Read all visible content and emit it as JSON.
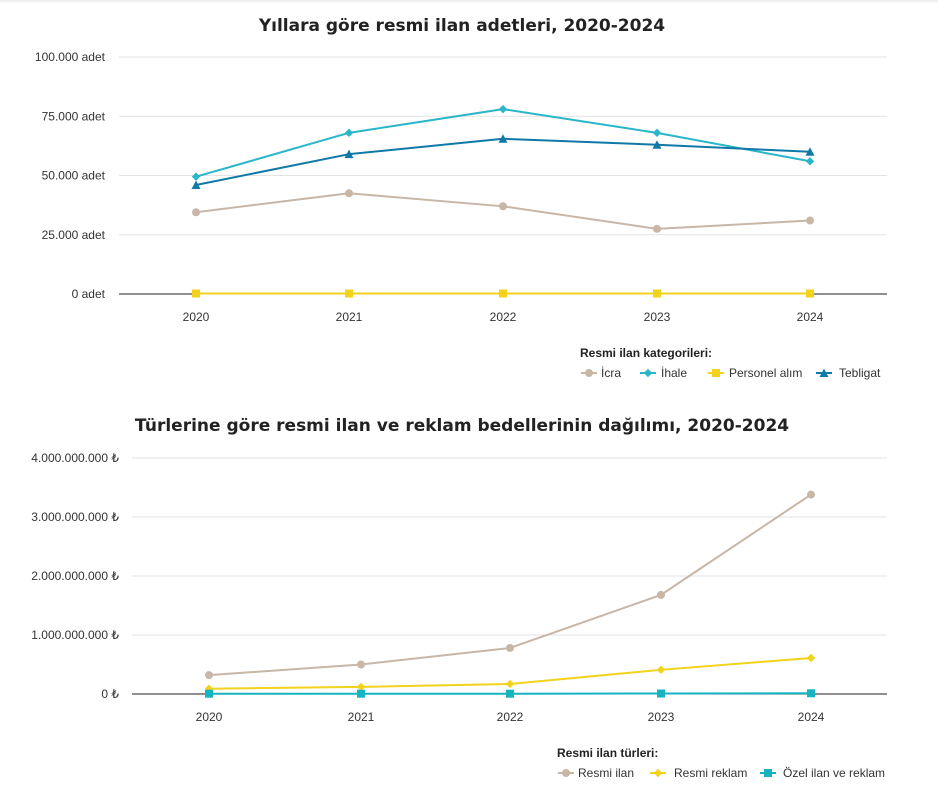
{
  "chart_data": [
    {
      "type": "line",
      "title": "Yıllara göre resmi ilan adetleri, 2020-2024",
      "x": [
        "2020",
        "2021",
        "2022",
        "2023",
        "2024"
      ],
      "y_ticks": [
        "0 adet",
        "25.000 adet",
        "50.000 adet",
        "75.000 adet",
        "100.000 adet"
      ],
      "ylim": [
        0,
        100000
      ],
      "grid": true,
      "legend_title": "Resmi ilan kategorileri:",
      "legend_position": "bottom-right",
      "series": [
        {
          "name": "İcra",
          "values": [
            34500,
            42500,
            37000,
            27500,
            31000
          ],
          "color": "#c8b6a6",
          "marker": "circle"
        },
        {
          "name": "İhale",
          "values": [
            49500,
            68000,
            78000,
            68000,
            56000
          ],
          "color": "#29b6c9",
          "marker": "diamond"
        },
        {
          "name": "Personel alım",
          "values": [
            200,
            200,
            200,
            200,
            200
          ],
          "color": "#f2d21a",
          "marker": "square"
        },
        {
          "name": "Tebligat",
          "values": [
            46000,
            59000,
            65500,
            63000,
            60000
          ],
          "color": "#1179a8",
          "marker": "triangle"
        }
      ]
    },
    {
      "type": "line",
      "title": "Türlerine göre resmi ilan ve reklam bedellerinin dağılımı, 2020-2024",
      "x": [
        "2020",
        "2021",
        "2022",
        "2023",
        "2024"
      ],
      "y_ticks": [
        "0 ₺",
        "1.000.000.000 ₺",
        "2.000.000.000 ₺",
        "3.000.000.000 ₺",
        "4.000.000.000 ₺"
      ],
      "ylim": [
        0,
        4000000000
      ],
      "grid": true,
      "legend_title": "Resmi ilan türleri:",
      "legend_position": "bottom-right",
      "series": [
        {
          "name": "Resmi ilan",
          "values": [
            320000000,
            500000000,
            780000000,
            1680000000,
            3380000000
          ],
          "color": "#c8b6a6",
          "marker": "circle"
        },
        {
          "name": "Resmi reklam",
          "values": [
            90000000,
            120000000,
            170000000,
            410000000,
            610000000
          ],
          "color": "#f2d21a",
          "marker": "diamond"
        },
        {
          "name": "Özel ilan ve reklam",
          "values": [
            5000000,
            5000000,
            5000000,
            8000000,
            12000000
          ],
          "color": "#17b3c1",
          "marker": "square"
        }
      ]
    }
  ]
}
